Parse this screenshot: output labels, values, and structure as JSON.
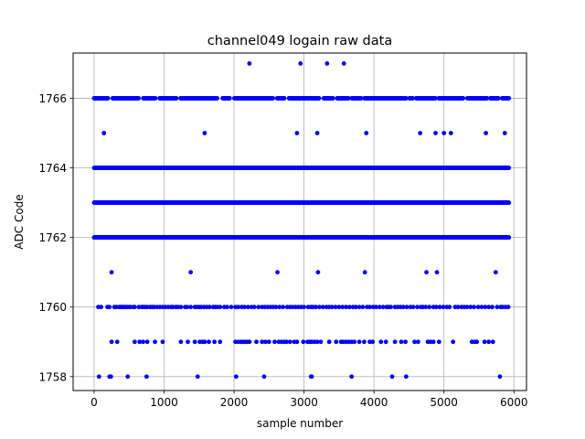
{
  "chart_data": {
    "type": "scatter",
    "title": "channel049 logain raw data",
    "xlabel": "sample number",
    "ylabel": "ADC Code",
    "xlim": [
      -300,
      6180
    ],
    "ylim": [
      1757.6,
      1767.3
    ],
    "xticks": [
      0,
      1000,
      2000,
      3000,
      4000,
      5000,
      6000
    ],
    "yticks": [
      1758,
      1760,
      1762,
      1764,
      1766
    ],
    "grid": true,
    "marker_color": "#0000ff",
    "series": [
      {
        "rows": [
          {
            "y": 1767,
            "x": [
              2220,
              2950,
              3330,
              3570
            ]
          },
          {
            "y": 1766,
            "dense": true,
            "x_start": 0,
            "x_end": 5930,
            "step": 6,
            "gaps": [
              [
                200,
                260
              ],
              [
                640,
                700
              ],
              [
                880,
                930
              ],
              [
                1180,
                1230
              ],
              [
                1760,
                1830
              ],
              [
                1940,
                2000
              ],
              [
                2560,
                2610
              ],
              [
                2720,
                2780
              ],
              [
                3220,
                3280
              ],
              [
                3420,
                3470
              ],
              [
                3640,
                3680
              ],
              [
                3820,
                3860
              ],
              [
                4460,
                4500
              ],
              [
                4560,
                4600
              ],
              [
                4880,
                4920
              ],
              [
                5280,
                5330
              ],
              [
                5620,
                5660
              ],
              [
                5780,
                5830
              ]
            ]
          },
          {
            "y": 1765,
            "x": [
              140,
              1580,
              2900,
              3190,
              3890,
              4660,
              4880,
              5000,
              5100,
              5600,
              5870
            ]
          },
          {
            "y": 1764,
            "dense": true,
            "x_start": 0,
            "x_end": 5930,
            "step": 4,
            "gaps": []
          },
          {
            "y": 1763,
            "dense": true,
            "x_start": 0,
            "x_end": 5930,
            "step": 4,
            "gaps": []
          },
          {
            "y": 1762,
            "dense": true,
            "x_start": 0,
            "x_end": 5930,
            "step": 3,
            "gaps": []
          },
          {
            "y": 1761,
            "x": [
              250,
              1380,
              2620,
              3200,
              3870,
              4750,
              4900,
              5740
            ]
          },
          {
            "y": 1760,
            "x": [
              60,
              100,
              190,
              220,
              290,
              320,
              360,
              380,
              400,
              420,
              440,
              470,
              500,
              520,
              560,
              580,
              640,
              680,
              700,
              730,
              760,
              800,
              830,
              860,
              900,
              940,
              980,
              1020,
              1060,
              1100,
              1130,
              1170,
              1200,
              1240,
              1300,
              1330,
              1380,
              1440,
              1470,
              1500,
              1530,
              1570,
              1610,
              1650,
              1700,
              1730,
              1760,
              1800,
              1860,
              1900,
              1960,
              2020,
              2060,
              2110,
              2150,
              2200,
              2250,
              2290,
              2350,
              2400,
              2440,
              2480,
              2520,
              2560,
              2600,
              2650,
              2700,
              2760,
              2800,
              2840,
              2880,
              2920,
              2960,
              3000,
              3060,
              3100,
              3130,
              3170,
              3220,
              3270,
              3320,
              3360,
              3400,
              3450,
              3500,
              3550,
              3600,
              3650,
              3700,
              3740,
              3790,
              3840,
              3900,
              3940,
              3990,
              4030,
              4080,
              4130,
              4180,
              4210,
              4240,
              4300,
              4340,
              4380,
              4420,
              4470,
              4520,
              4560,
              4620,
              4670,
              4700,
              4740,
              4790,
              4850,
              4890,
              4940,
              4990,
              5040,
              5080,
              5160,
              5200,
              5250,
              5290,
              5330,
              5380,
              5430,
              5490,
              5540,
              5590,
              5640,
              5690,
              5760,
              5810,
              5840,
              5880,
              5920
            ]
          },
          {
            "y": 1759,
            "x": [
              250,
              330,
              580,
              650,
              700,
              760,
              870,
              980,
              1240,
              1340,
              1440,
              1510,
              1550,
              1580,
              1640,
              1720,
              1800,
              2020,
              2060,
              2100,
              2130,
              2160,
              2190,
              2220,
              2320,
              2400,
              2450,
              2500,
              2580,
              2640,
              2680,
              2720,
              2750,
              2800,
              2860,
              2900,
              2990,
              3050,
              3080,
              3110,
              3150,
              3190,
              3240,
              3360,
              3460,
              3530,
              3560,
              3600,
              3640,
              3680,
              3720,
              3790,
              3860,
              3940,
              3980,
              4100,
              4170,
              4300,
              4390,
              4450,
              4580,
              4630,
              4770,
              4810,
              4850,
              4930,
              5130,
              5400,
              5440,
              5470,
              5580,
              5640,
              5700
            ]
          },
          {
            "y": 1758,
            "x": [
              70,
              220,
              240,
              480,
              750,
              1480,
              2030,
              2430,
              3100,
              3110,
              3680,
              4260,
              4460,
              5800
            ]
          }
        ]
      }
    ]
  }
}
